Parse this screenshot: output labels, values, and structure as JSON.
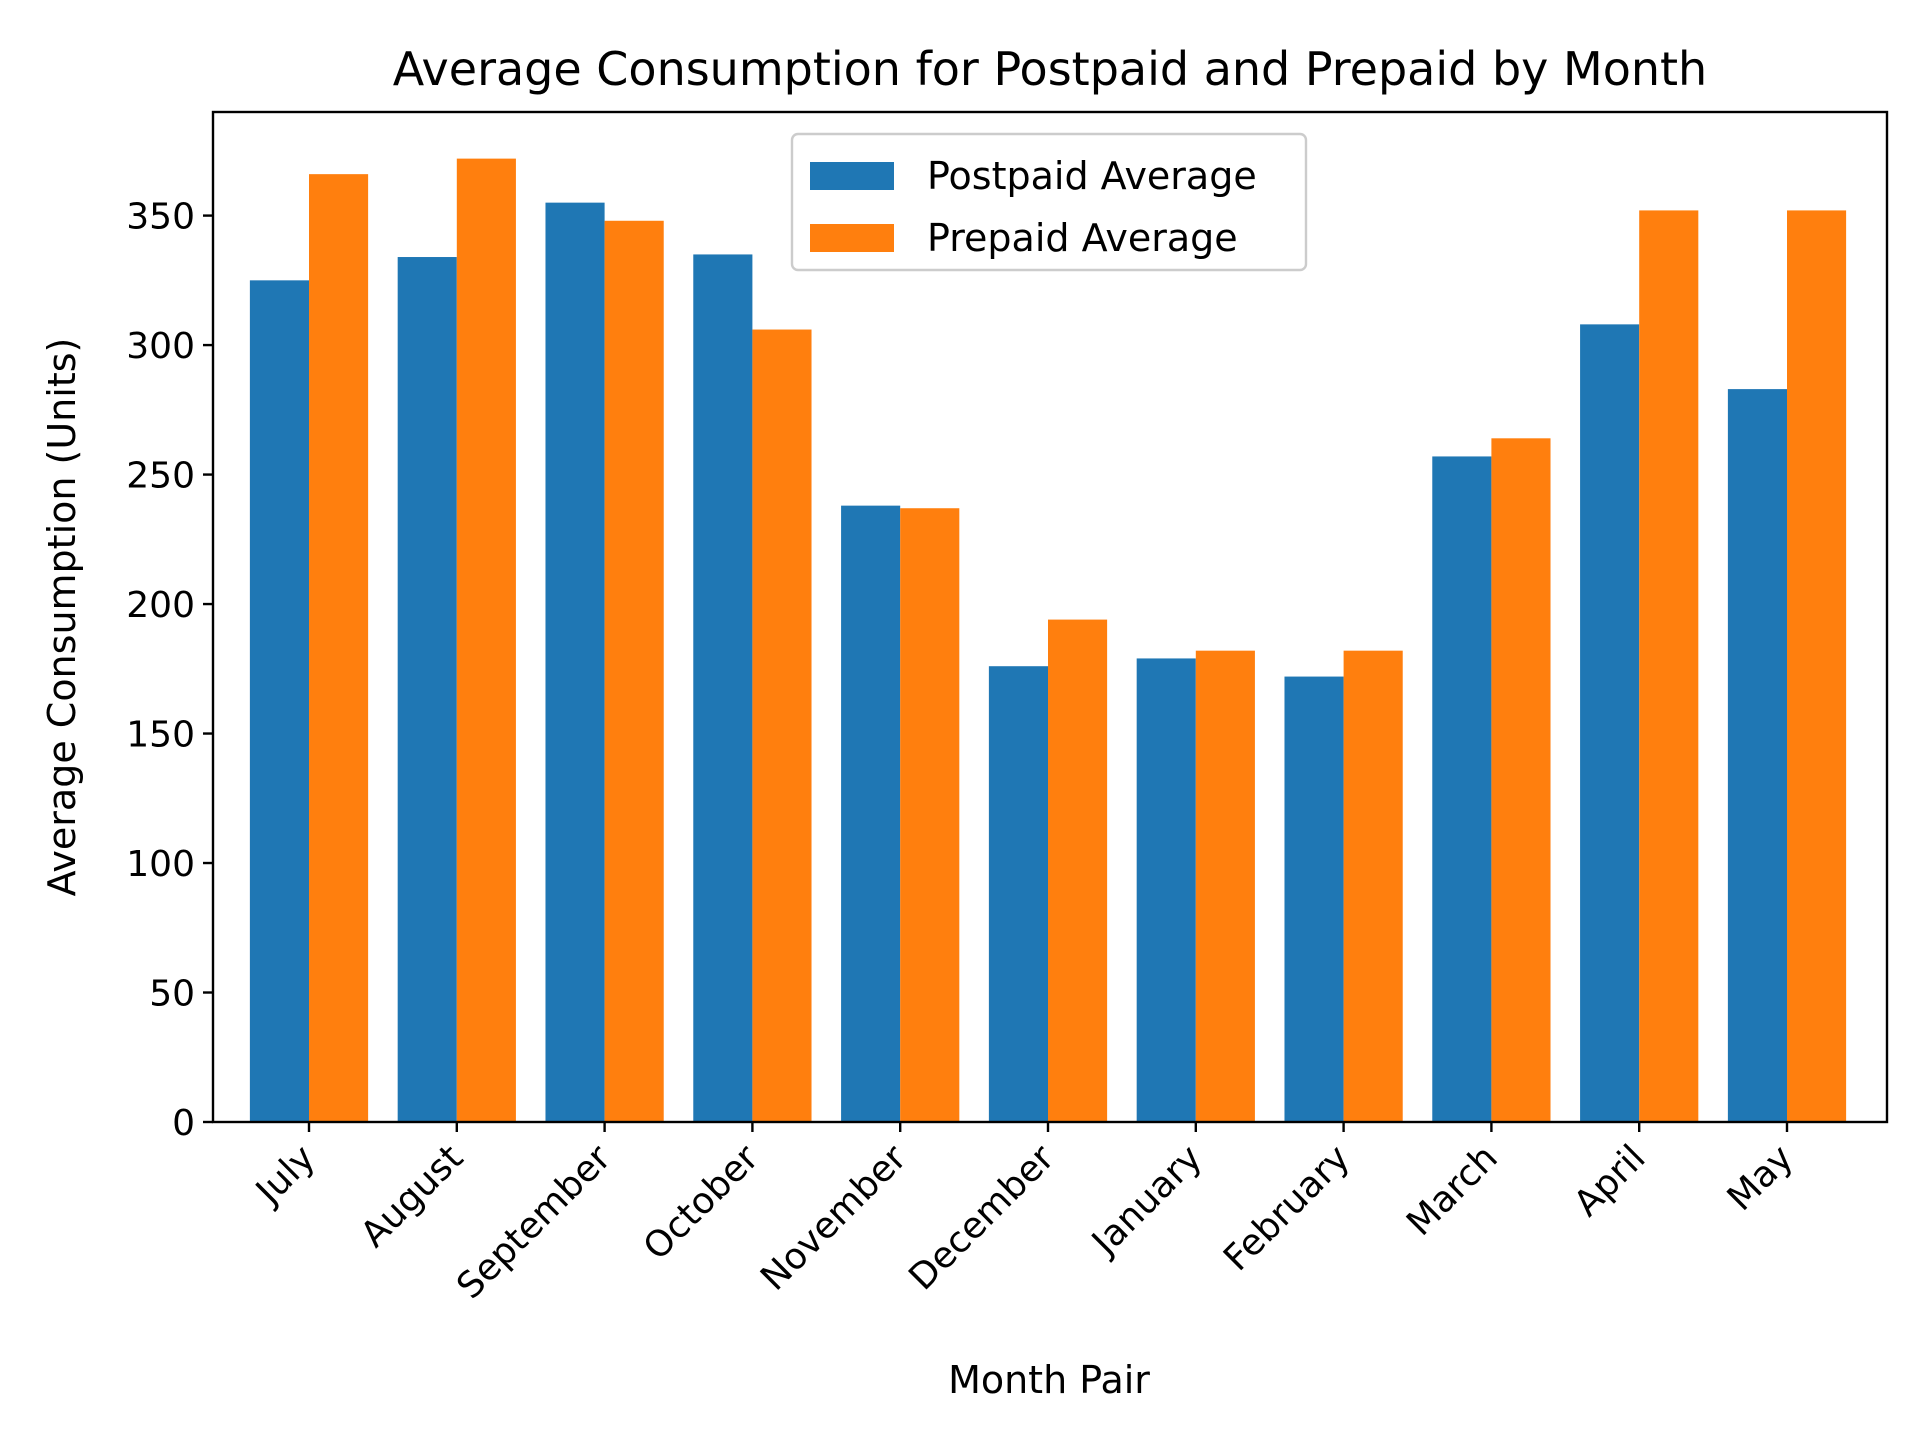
{
  "chart_data": {
    "type": "bar",
    "title": "Average Consumption for Postpaid and Prepaid by Month",
    "xlabel": "Month Pair",
    "ylabel": "Average Consumption (Units)",
    "categories": [
      "July",
      "August",
      "September",
      "October",
      "November",
      "December",
      "January",
      "February",
      "March",
      "April",
      "May"
    ],
    "series": [
      {
        "name": "Postpaid Average",
        "color": "#1f77b4",
        "values": [
          325,
          334,
          355,
          335,
          238,
          176,
          179,
          172,
          257,
          308,
          283
        ]
      },
      {
        "name": "Prepaid Average",
        "color": "#ff7f0e",
        "values": [
          366,
          372,
          348,
          306,
          237,
          194,
          182,
          182,
          264,
          352,
          352
        ]
      }
    ],
    "ylim": [
      0,
      390
    ],
    "yticks": [
      0,
      50,
      100,
      150,
      200,
      250,
      300,
      350
    ],
    "grid": false,
    "legend_position": "top-center"
  }
}
